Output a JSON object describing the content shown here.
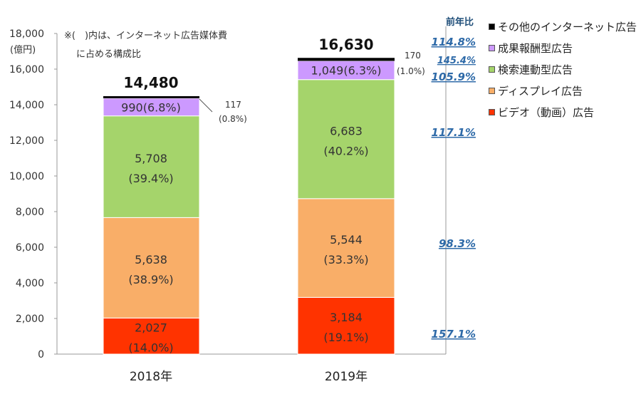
{
  "chart_data": {
    "type": "bar",
    "stacked": true,
    "categories": [
      "2018年",
      "2019年"
    ],
    "ylabel": "(億円)",
    "ylim": [
      0,
      18000
    ],
    "yticks": [
      "0",
      "2,000",
      "4,000",
      "6,000",
      "8,000",
      "10,000",
      "12,000",
      "14,000",
      "16,000",
      "18,000"
    ],
    "grid": false,
    "note": [
      "※(　)内は、インターネット広告媒体費",
      "に占める構成比"
    ],
    "totals": [
      "14,480",
      "16,630"
    ],
    "legend_title": "前年比",
    "legend_placement": "right",
    "series": [
      {
        "name": "ビデオ（動画）広告",
        "color": "#ff3300",
        "values": [
          2027,
          3184
        ],
        "labels": [
          "2,027",
          "3,184"
        ],
        "shares": [
          "(14.0%)",
          "(19.1%)"
        ],
        "yoy": "157.1%"
      },
      {
        "name": "ディスプレイ広告",
        "color": "#f9ae68",
        "values": [
          5638,
          5544
        ],
        "labels": [
          "5,638",
          "5,544"
        ],
        "shares": [
          "(38.9%)",
          "(33.3%)"
        ],
        "yoy": "98.3%"
      },
      {
        "name": "検索連動型広告",
        "color": "#a5d46b",
        "values": [
          5708,
          6683
        ],
        "labels": [
          "5,708",
          "6,683"
        ],
        "shares": [
          "(39.4%)",
          "(40.2%)"
        ],
        "yoy": "117.1%"
      },
      {
        "name": "成果報酬型広告",
        "color": "#cc99ff",
        "values": [
          990,
          1049
        ],
        "labels": [
          "990(6.8%)",
          "1,049(6.3%)"
        ],
        "yoy": "105.9%"
      },
      {
        "name": "その他のインターネット広告",
        "color": "#000000",
        "values": [
          117,
          170
        ],
        "labels": [
          "117",
          "170"
        ],
        "shares": [
          "(0.8%)",
          "(1.0%)"
        ],
        "yoy": "145.4%"
      }
    ],
    "total_yoy": "114.8%"
  }
}
